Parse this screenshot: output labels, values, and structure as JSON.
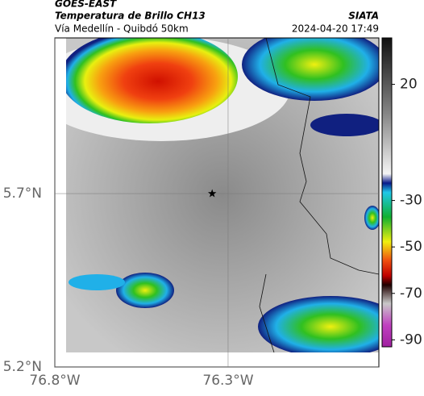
{
  "header": {
    "source": "GOES-EAST",
    "title": "Temperatura de Brillo CH13",
    "brand": "SIATA",
    "route": "Vía Medellín - Quibdó 50km",
    "datetime": "2024-04-20 17:49"
  },
  "map": {
    "xlim": [
      -76.8,
      -75.865
    ],
    "ylim": [
      5.2,
      6.149
    ],
    "xticks": [
      {
        "value": -76.8,
        "label": "76.8°W"
      },
      {
        "value": -76.3,
        "label": "76.3°W"
      }
    ],
    "yticks": [
      {
        "value": 5.2,
        "label": "5.2°N"
      },
      {
        "value": 5.7,
        "label": "5.7°N"
      }
    ],
    "marker": {
      "lon": -76.346,
      "lat": 5.7
    }
  },
  "colorbar": {
    "lim": [
      -93,
      40
    ],
    "ticks": [
      20,
      -30,
      -50,
      -70,
      -90
    ]
  }
}
